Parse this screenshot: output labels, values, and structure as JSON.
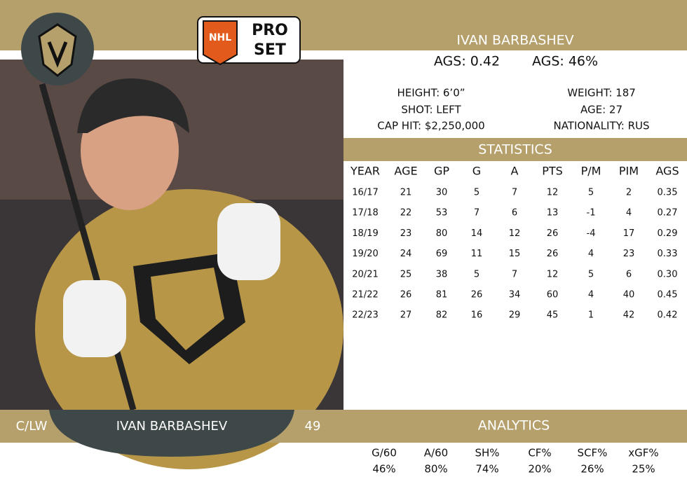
{
  "header": {
    "brand": {
      "league": "NHL",
      "line1": "PRO",
      "line2": "SET"
    },
    "name": "IVAN BARBASHEV",
    "ags_summary": [
      "AGS: 0.42",
      "AGS: 46%"
    ]
  },
  "bio": {
    "left": [
      "HEIGHT: 6’0”",
      "SHOT: LEFT",
      "CAP HIT: $2,250,000"
    ],
    "right": [
      "WEIGHT: 187",
      "AGE: 27",
      "NATIONALITY: RUS"
    ]
  },
  "statistics": {
    "title": "STATISTICS",
    "columns": [
      "YEAR",
      "AGE",
      "GP",
      "G",
      "A",
      "PTS",
      "P/M",
      "PIM",
      "AGS"
    ],
    "rows": [
      [
        "16/17",
        "21",
        "30",
        "5",
        "7",
        "12",
        "5",
        "2",
        "0.35"
      ],
      [
        "17/18",
        "22",
        "53",
        "7",
        "6",
        "13",
        "-1",
        "4",
        "0.27"
      ],
      [
        "18/19",
        "23",
        "80",
        "14",
        "12",
        "26",
        "-4",
        "17",
        "0.29"
      ],
      [
        "19/20",
        "24",
        "69",
        "11",
        "15",
        "26",
        "4",
        "23",
        "0.33"
      ],
      [
        "20/21",
        "25",
        "38",
        "5",
        "7",
        "12",
        "5",
        "6",
        "0.30"
      ],
      [
        "21/22",
        "26",
        "81",
        "26",
        "34",
        "60",
        "4",
        "40",
        "0.45"
      ],
      [
        "22/23",
        "27",
        "82",
        "16",
        "29",
        "45",
        "1",
        "42",
        "0.42"
      ]
    ]
  },
  "footer": {
    "position": "C/LW",
    "name": "IVAN BARBASHEV",
    "number": "49"
  },
  "analytics": {
    "title": "ANALYTICS",
    "columns": [
      "G/60",
      "A/60",
      "SH%",
      "CF%",
      "SCF%",
      "xGF%"
    ],
    "values": [
      "46%",
      "80%",
      "74%",
      "20%",
      "26%",
      "25%"
    ]
  }
}
